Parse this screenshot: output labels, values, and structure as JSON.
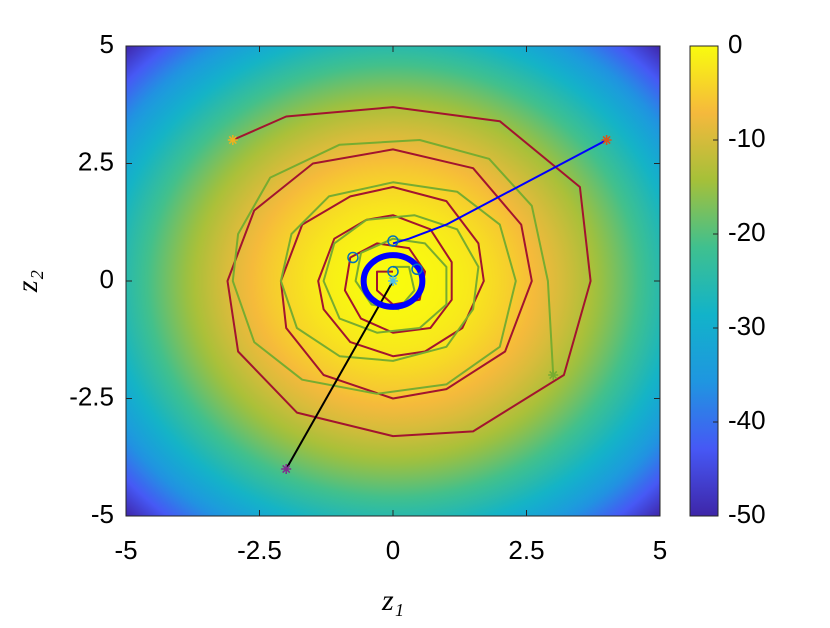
{
  "chart_data": {
    "type": "field",
    "xlabel": "z₁",
    "ylabel": "z₂",
    "xlim": [
      -5,
      5
    ],
    "ylim": [
      -5,
      5
    ],
    "xticks": [
      -5,
      -2.5,
      0,
      2.5,
      5
    ],
    "yticks": [
      -5,
      -2.5,
      0,
      2.5,
      5
    ],
    "clim": [
      -50,
      0
    ],
    "cticks": [
      -50,
      -40,
      -30,
      -20,
      -10,
      0
    ],
    "colormap": [
      "#3e26a8",
      "#4658f5",
      "#1f96e0",
      "#12b3c9",
      "#3fc08f",
      "#a5c039",
      "#f5b93c",
      "#f9fb0e"
    ],
    "series": [
      {
        "color": "#a2142f",
        "x": [
          -3,
          -2,
          0,
          2,
          3.5,
          3.7,
          3.2,
          1.5,
          0,
          -1.8,
          -2.9,
          -3.1,
          -2.6,
          -1.5,
          0,
          1.5,
          2.4,
          2.6,
          2.1,
          1,
          0,
          -1.3,
          -2,
          -2.1,
          -1.7,
          -0.8,
          0,
          1,
          1.6,
          1.7,
          1.3,
          0.6,
          0,
          -0.8,
          -1.3,
          -1.4,
          -1.1,
          -0.5,
          0,
          0.7,
          1.1,
          1.1,
          0.7,
          0,
          -0.6,
          -0.9,
          -0.8,
          -0.3,
          0.3,
          0.6,
          0.5,
          0,
          -0.3,
          -0.3,
          0
        ],
        "y": [
          3,
          3.5,
          3.7,
          3.4,
          2,
          0,
          -2,
          -3.2,
          -3.3,
          -2.8,
          -1.5,
          0,
          1.5,
          2.5,
          2.8,
          2.4,
          1.2,
          0,
          -1.5,
          -2.3,
          -2.5,
          -2,
          -1,
          0,
          1.2,
          1.8,
          2,
          1.7,
          0.8,
          0,
          -1,
          -1.5,
          -1.6,
          -1.3,
          -0.6,
          0,
          0.9,
          1.3,
          1.4,
          1.1,
          0.4,
          -0.4,
          -1,
          -1.1,
          -0.8,
          -0.2,
          0.5,
          0.8,
          0.7,
          0.2,
          -0.4,
          -0.5,
          -0.2,
          0.2,
          0.2
        ]
      },
      {
        "color": "#77ac30",
        "x": [
          3,
          2.9,
          2.6,
          1.8,
          0.5,
          -1,
          -2.3,
          -2.9,
          -3,
          -2.6,
          -1.7,
          -0.3,
          1,
          2,
          2.3,
          2,
          1.2,
          0,
          -1.2,
          -1.9,
          -2.1,
          -1.8,
          -1,
          0,
          1,
          1.5,
          1.6,
          1.2,
          0.4,
          -0.5,
          -1.1,
          -1.3,
          -1,
          -0.3,
          0.5,
          1,
          1,
          0.6,
          0,
          -0.6,
          -0.7,
          -0.4,
          0.1,
          0.4,
          0.3,
          0
        ],
        "y": [
          -2,
          0,
          1.6,
          2.6,
          3,
          2.9,
          2.2,
          1,
          0,
          -1.3,
          -2.1,
          -2.4,
          -2.2,
          -1.4,
          0,
          1.2,
          1.9,
          2.1,
          1.8,
          1,
          0,
          -1,
          -1.6,
          -1.7,
          -1.4,
          -0.6,
          0.3,
          1.1,
          1.4,
          1.3,
          0.8,
          0,
          -0.8,
          -1.1,
          -1,
          -0.5,
          0.3,
          0.8,
          0.9,
          0.6,
          0,
          -0.5,
          -0.6,
          -0.2,
          0.3,
          0.3
        ]
      },
      {
        "color": "#0000ff",
        "x": [
          4,
          1,
          0.3,
          0
        ],
        "y": [
          3,
          1.2,
          0.9,
          0.8
        ]
      },
      {
        "color": "#000000",
        "x": [
          -2,
          0
        ],
        "y": [
          -4,
          0
        ]
      }
    ],
    "ring": {
      "x": 0,
      "y": 0,
      "r": 0.55,
      "color": "#0000ff"
    },
    "circles": {
      "color": "#0072bd",
      "x": [
        0,
        -0.75,
        0.45,
        0
      ],
      "y": [
        0.85,
        0.5,
        0.25,
        0.2
      ]
    },
    "stars": [
      {
        "x": -3,
        "y": 3,
        "color": "#edb120"
      },
      {
        "x": 4,
        "y": 3,
        "color": "#d95319"
      },
      {
        "x": 3,
        "y": -2,
        "color": "#77ac30"
      },
      {
        "x": -2,
        "y": -4,
        "color": "#7e2f8e"
      },
      {
        "x": 0,
        "y": 0,
        "color": "#4dbeee"
      }
    ]
  }
}
